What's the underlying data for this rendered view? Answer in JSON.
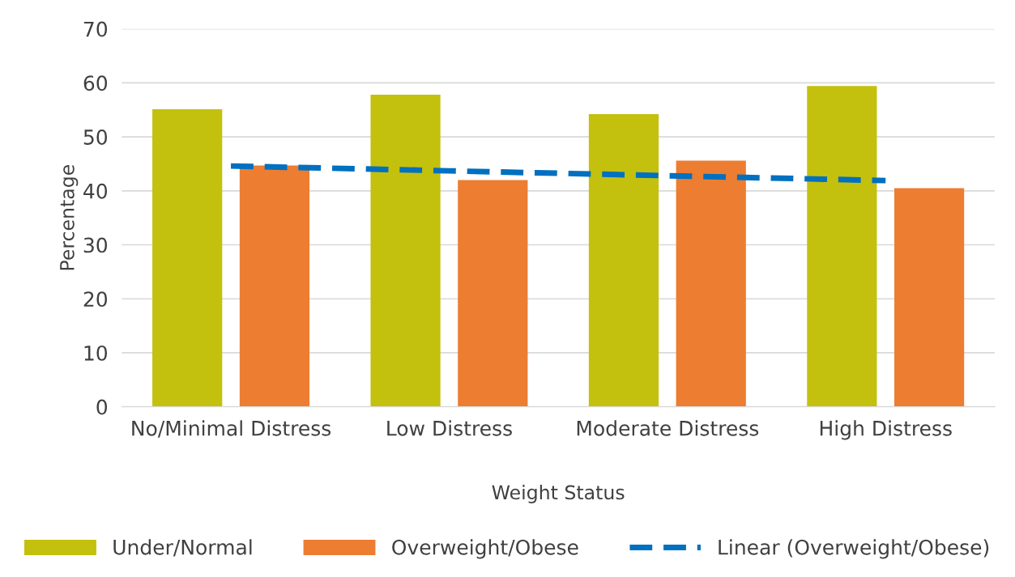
{
  "chart_data": {
    "type": "bar",
    "xlabel": "Weight Status",
    "ylabel": "Percentage",
    "categories": [
      "No/Minimal Distress",
      "Low Distress",
      "Moderate Distress",
      "High Distress"
    ],
    "series": [
      {
        "name": "Under/Normal",
        "color": "#c4c00e",
        "values": [
          55.1,
          57.8,
          54.2,
          59.4
        ]
      },
      {
        "name": "Overweight/Obese",
        "color": "#ed7d31",
        "values": [
          44.7,
          42.0,
          45.6,
          40.5
        ]
      },
      {
        "name": "Linear (Overweight/Obese)",
        "type": "line",
        "line_style": "dashed",
        "color": "#0070c0",
        "values": [
          44.6,
          43.7,
          42.8,
          41.9
        ]
      }
    ],
    "ylim": [
      0,
      70
    ],
    "yticks": [
      0,
      10,
      20,
      30,
      40,
      50,
      60,
      70
    ],
    "grid": "y",
    "legend": "bottom"
  }
}
